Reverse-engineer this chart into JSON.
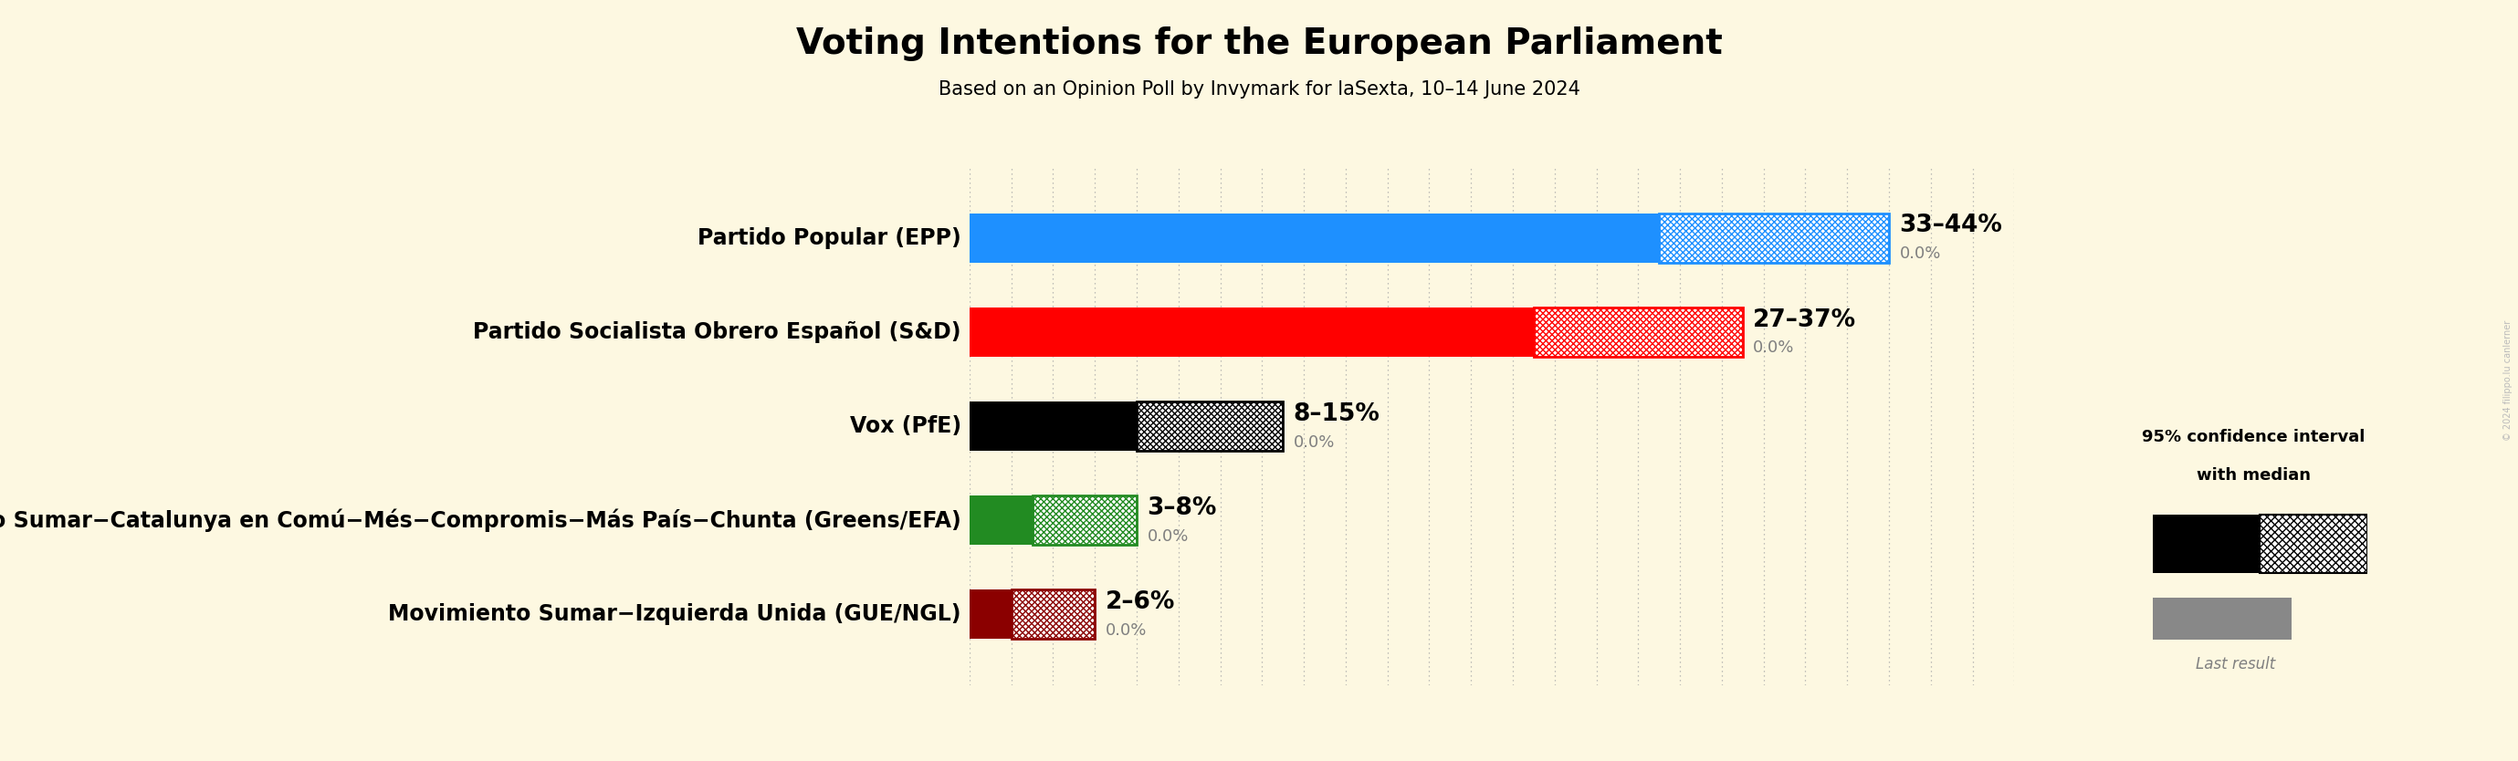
{
  "title": "Voting Intentions for the European Parliament",
  "subtitle": "Based on an Opinion Poll by Invymark for laSexta, 10–14 June 2024",
  "background_color": "#fdf8e1",
  "parties": [
    {
      "name": "Partido Popular (EPP)",
      "ci_low": 33,
      "ci_high": 44,
      "last_result": 0.0,
      "color": "#1e90ff",
      "range_label": "33–44%"
    },
    {
      "name": "Partido Socialista Obrero Español (S&D)",
      "ci_low": 27,
      "ci_high": 37,
      "last_result": 0.0,
      "color": "#ff0000",
      "range_label": "27–37%"
    },
    {
      "name": "Vox (PfE)",
      "ci_low": 8,
      "ci_high": 15,
      "last_result": 0.0,
      "color": "#000000",
      "range_label": "8–15%"
    },
    {
      "name": "Movimiento Sumar−Catalunya en Comú−Més−Compromis−Más País−Chunta (Greens/EFA)",
      "ci_low": 3,
      "ci_high": 8,
      "last_result": 0.0,
      "color": "#228b22",
      "range_label": "3–8%"
    },
    {
      "name": "Movimiento Sumar−Izquierda Unida (GUE/NGL)",
      "ci_low": 2,
      "ci_high": 6,
      "last_result": 0.0,
      "color": "#8b0000",
      "range_label": "2–6%"
    }
  ],
  "xlim": [
    0,
    50
  ],
  "bar_height": 0.52,
  "dotted_grid_color": "#aaaaaa",
  "title_fontsize": 28,
  "subtitle_fontsize": 15,
  "label_fontsize": 17,
  "range_fontsize": 19,
  "last_result_fontsize": 13,
  "watermark": "© 2024 filippo.lu canlerner"
}
